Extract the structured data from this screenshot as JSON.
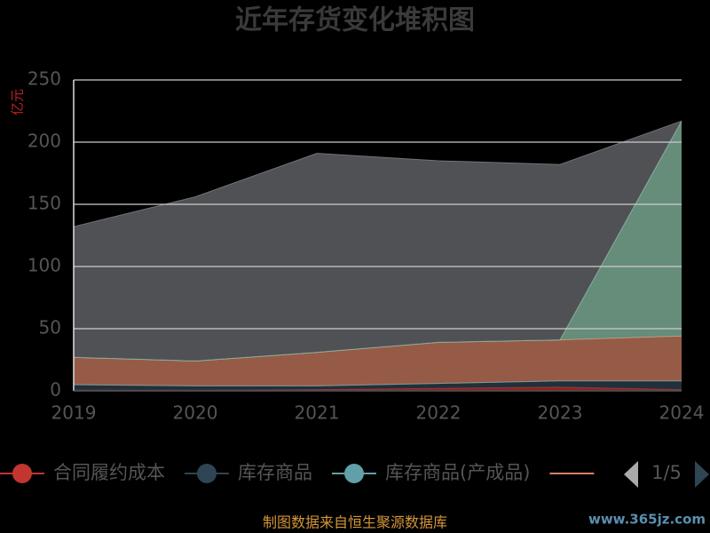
{
  "chart_data": {
    "type": "stacked_area",
    "title": "近年存货变化堆积图",
    "y_label": "亿元",
    "categories": [
      "2019",
      "2020",
      "2021",
      "2022",
      "2023",
      "2024"
    ],
    "series": [
      {
        "name": "合同履约成本",
        "color": "#c23531",
        "values": [
          0.5,
          0.5,
          1,
          2,
          3,
          1
        ]
      },
      {
        "name": "库存商品",
        "color": "#2f4554",
        "values": [
          4.5,
          3.5,
          3,
          4,
          5,
          7
        ]
      },
      {
        "name": "库存商品(产成品)",
        "color": "#61a0a8",
        "values": [
          0,
          0,
          0,
          0,
          0,
          0
        ]
      },
      {
        "color": "#d48265",
        "values": [
          22,
          20,
          27,
          33,
          33,
          36
        ]
      },
      {
        "color": "#91c7ae",
        "values": [
          0,
          0,
          0,
          0,
          0,
          173
        ]
      },
      {
        "color": "#717379",
        "values": [
          105,
          132,
          160,
          146,
          141,
          0
        ]
      }
    ],
    "ylim": [
      0,
      250
    ],
    "yticks": [
      0,
      50,
      100,
      150,
      200,
      250
    ],
    "grid": true,
    "legend_page": "1/5",
    "source": "制图数据来自恒生聚源数据库",
    "watermark": "www.365jz.com"
  }
}
